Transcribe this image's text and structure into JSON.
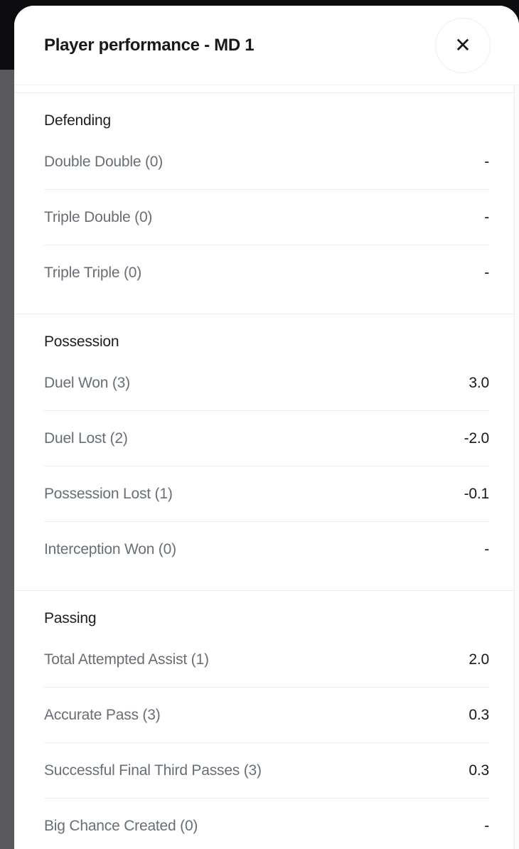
{
  "header": {
    "title": "Player performance - MD 1",
    "close_icon": "✕"
  },
  "sections": [
    {
      "name": "Defending",
      "rows": [
        {
          "label": "Double Double (0)",
          "value": "-"
        },
        {
          "label": "Triple Double (0)",
          "value": "-"
        },
        {
          "label": "Triple Triple (0)",
          "value": "-"
        }
      ]
    },
    {
      "name": "Possession",
      "rows": [
        {
          "label": "Duel Won (3)",
          "value": "3.0"
        },
        {
          "label": "Duel Lost (2)",
          "value": "-2.0"
        },
        {
          "label": "Possession Lost (1)",
          "value": "-0.1"
        },
        {
          "label": "Interception Won (0)",
          "value": "-"
        }
      ]
    },
    {
      "name": "Passing",
      "rows": [
        {
          "label": "Total Attempted Assist (1)",
          "value": "2.0"
        },
        {
          "label": "Accurate Pass (3)",
          "value": "0.3"
        },
        {
          "label": "Successful Final Third Passes (3)",
          "value": "0.3"
        },
        {
          "label": "Big Chance Created (0)",
          "value": "-"
        }
      ]
    }
  ],
  "colors": {
    "backdrop_top": "#0c0c0e",
    "backdrop_bottom": "#59595d",
    "modal_bg": "#ffffff",
    "title_text": "#17191d",
    "section_text": "#1c1e22",
    "label_text": "#686e76",
    "value_text": "#17181c",
    "row_divider": "#eeeef2",
    "section_divider": "#e9e9ef"
  }
}
